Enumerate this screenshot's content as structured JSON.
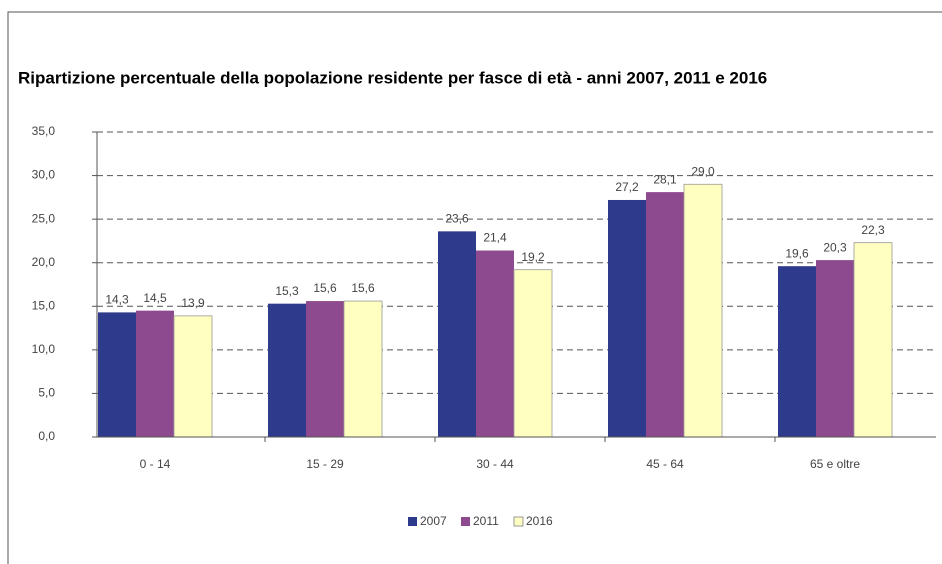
{
  "chart_data": {
    "type": "bar",
    "title": "Ripartizione percentuale della popolazione residente per fasce di età - anni 2007, 2011 e 2016",
    "categories": [
      "0 - 14",
      "15 - 29",
      "30 - 44",
      "45 - 64",
      "65 e oltre"
    ],
    "series": [
      {
        "name": "2007",
        "color": "#2e3a8c",
        "values": [
          14.3,
          15.3,
          23.6,
          27.2,
          19.6
        ],
        "value_labels": [
          "14,3",
          "15,3",
          "23,6",
          "27,2",
          "19,6"
        ]
      },
      {
        "name": "2011",
        "color": "#8e4a8e",
        "values": [
          14.5,
          15.6,
          21.4,
          28.1,
          20.3
        ],
        "value_labels": [
          "14,5",
          "15,6",
          "21,4",
          "28,1",
          "20,3"
        ]
      },
      {
        "name": "2016",
        "color": "#ffffc0",
        "values": [
          13.9,
          15.6,
          19.2,
          29.0,
          22.3
        ],
        "value_labels": [
          "13,9",
          "15,6",
          "19,2",
          "29,0",
          "22,3"
        ]
      }
    ],
    "ylim": [
      0,
      35
    ],
    "yticks": [
      {
        "value": 0,
        "label": "0,0"
      },
      {
        "value": 5,
        "label": "5,0"
      },
      {
        "value": 10,
        "label": "10,0"
      },
      {
        "value": 15,
        "label": "15,0"
      },
      {
        "value": 20,
        "label": "20,0"
      },
      {
        "value": 25,
        "label": "25,0"
      },
      {
        "value": 30,
        "label": "30,0"
      },
      {
        "value": 35,
        "label": "35,0"
      }
    ],
    "grid": true,
    "legend": "bottom"
  }
}
